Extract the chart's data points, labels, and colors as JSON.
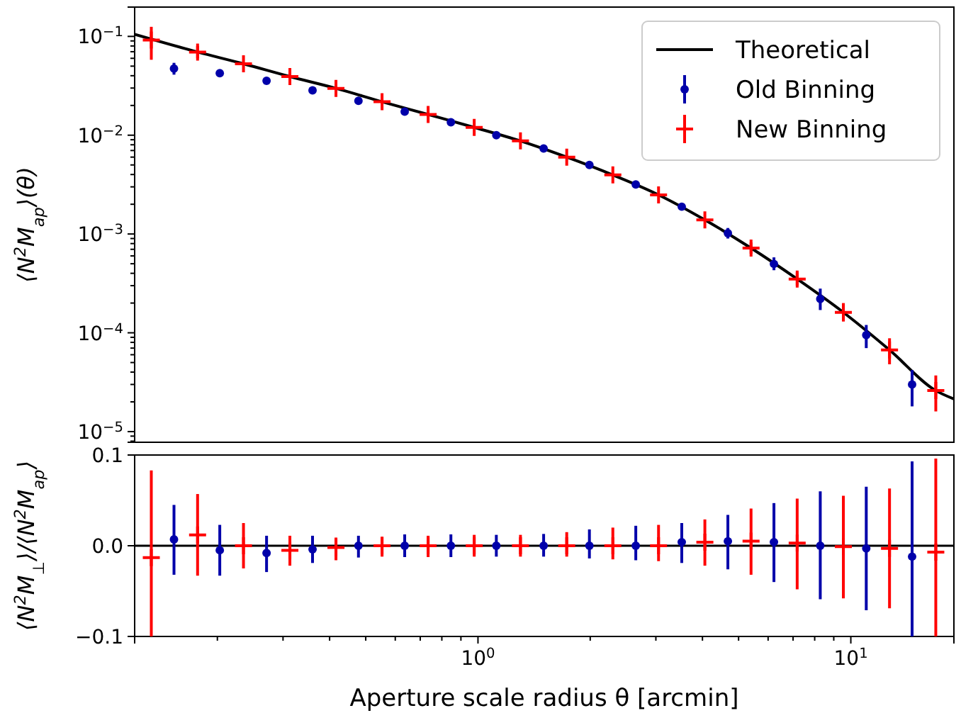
{
  "chart_data": [
    {
      "type": "line",
      "ylabel": "⟨N$^{2}$M$_{ap}$⟩(θ)",
      "log": "xy",
      "xlim": [
        0.12,
        18.9
      ],
      "ylim": [
        7.8e-06,
        0.198
      ],
      "tick_labels": "y",
      "legend": "top right",
      "grid": false,
      "yticks": [
        {
          "value": 0.1,
          "label": "10$^{−1}$"
        },
        {
          "value": 0.01,
          "label": "10$^{−2}$"
        },
        {
          "value": 0.001,
          "label": "10$^{−3}$"
        },
        {
          "value": 0.0001,
          "label": "10$^{−4}$"
        },
        {
          "value": 1e-05,
          "label": "10$^{−5}$"
        }
      ],
      "series": [
        {
          "name": "Theoretical",
          "color": "#000000",
          "line_style": "solid",
          "x": [
            0.12,
            0.177,
            0.235,
            0.313,
            0.416,
            0.553,
            0.735,
            0.977,
            1.3,
            1.73,
            2.3,
            3.05,
            4.06,
            5.4,
            7.18,
            9.55,
            12.7,
            16.9,
            18.9
          ],
          "values": [
            0.105,
            0.0695,
            0.0528,
            0.0392,
            0.0298,
            0.0218,
            0.0162,
            0.012,
            0.00875,
            0.006,
            0.00396,
            0.00249,
            0.00139,
            0.00072,
            0.00035,
            0.000161,
            6.7e-05,
            2.6e-05,
            2.14e-05
          ]
        },
        {
          "name": "Old Binning",
          "type": "scatter",
          "color": "#0000aa",
          "marker": "circle",
          "x": [
            0.153,
            0.203,
            0.271,
            0.36,
            0.478,
            0.636,
            0.846,
            1.12,
            1.5,
            1.99,
            2.65,
            3.52,
            4.68,
            6.22,
            8.28,
            11,
            14.6
          ],
          "values": [
            0.0473,
            0.0424,
            0.0355,
            0.0284,
            0.0223,
            0.0173,
            0.0135,
            0.01,
            0.00733,
            0.00499,
            0.00317,
            0.00189,
            0.00102,
            0.000498,
            0.00022,
            9.5e-05,
            3e-05
          ],
          "errors": [
            [
              0.041,
              0.054
            ],
            null,
            null,
            null,
            null,
            null,
            null,
            null,
            null,
            null,
            null,
            null,
            [
              0.0009,
              0.00115
            ],
            [
              0.00043,
              0.00058
            ],
            [
              0.00017,
              0.00028
            ],
            [
              7e-05,
              0.00012
            ],
            [
              1.8e-05,
              4.2e-05
            ]
          ]
        },
        {
          "name": "New Binning",
          "type": "scatter",
          "color": "#ff0000",
          "marker": "cross",
          "x": [
            0.133,
            0.177,
            0.235,
            0.313,
            0.416,
            0.553,
            0.735,
            0.977,
            1.3,
            1.73,
            2.3,
            3.05,
            4.06,
            5.4,
            7.18,
            9.55,
            12.7,
            16.9
          ],
          "values": [
            0.092,
            0.0695,
            0.0528,
            0.0392,
            0.0298,
            0.0218,
            0.0162,
            0.012,
            0.00875,
            0.006,
            0.00396,
            0.00249,
            0.00139,
            0.00072,
            0.00035,
            0.000161,
            6.7e-05,
            2.6e-05
          ],
          "errors": [
            [
              0.058,
              0.125
            ],
            [
              0.06,
              0.08
            ],
            null,
            null,
            null,
            null,
            null,
            null,
            null,
            null,
            null,
            null,
            null,
            [
              0.00063,
              0.00082
            ],
            [
              0.0003,
              0.00041
            ],
            [
              0.00013,
              0.0002
            ],
            [
              4.8e-05,
              8.8e-05
            ],
            [
              1.6e-05,
              3.7e-05
            ]
          ]
        }
      ]
    },
    {
      "type": "scatter",
      "xlabel": "Aperture scale radius θ [arcmin]",
      "ylabel": "⟨N$^{2}$M$_{⊥}$⟩/⟨N$^{2}$M$_{ap}$⟩",
      "log": "x",
      "xlim": [
        0.12,
        18.9
      ],
      "ylim": [
        -0.1,
        0.1
      ],
      "grid": false,
      "yticks": [
        {
          "value": 0.1,
          "label": "0.1"
        },
        {
          "value": 0,
          "label": "0.0"
        },
        {
          "value": -0.1,
          "label": "−0.1"
        }
      ],
      "xticks": [
        {
          "value": 1,
          "label": "10$^{0}$"
        },
        {
          "value": 10,
          "label": "10$^{1}$"
        }
      ],
      "ref_lines": [
        {
          "axis": "y",
          "value": 0,
          "color": "#000000"
        }
      ],
      "series": [
        {
          "color": "#0000aa",
          "marker": "circle",
          "x": [
            0.153,
            0.203,
            0.271,
            0.36,
            0.478,
            0.636,
            0.846,
            1.12,
            1.5,
            1.99,
            2.65,
            3.52,
            4.68,
            6.22,
            8.28,
            11,
            14.6
          ],
          "values": [
            0.007,
            -0.005,
            -0.008,
            -0.004,
            0,
            0,
            0,
            0,
            0,
            0,
            0,
            0.004,
            0.005,
            0.004,
            0,
            -0.003,
            -0.012
          ],
          "errors": [
            [
              -0.032,
              0.045
            ],
            [
              -0.033,
              0.023
            ],
            [
              -0.029,
              0.011
            ],
            [
              -0.019,
              0.011
            ],
            [
              -0.013,
              0.011
            ],
            [
              -0.0125,
              0.0125
            ],
            [
              -0.0125,
              0.0125
            ],
            [
              -0.012,
              0.012
            ],
            [
              -0.012,
              0.013
            ],
            [
              -0.014,
              0.018
            ],
            [
              -0.016,
              0.022
            ],
            [
              -0.019,
              0.025
            ],
            [
              -0.026,
              0.034
            ],
            [
              -0.04,
              0.047
            ],
            [
              -0.059,
              0.06
            ],
            [
              -0.071,
              0.065
            ],
            [
              -0.1,
              0.093
            ]
          ]
        },
        {
          "color": "#ff0000",
          "marker": "cross",
          "x": [
            0.133,
            0.177,
            0.235,
            0.313,
            0.416,
            0.553,
            0.735,
            0.977,
            1.3,
            1.73,
            2.3,
            3.05,
            4.06,
            5.4,
            7.18,
            9.55,
            12.7,
            16.9
          ],
          "values": [
            -0.013,
            0.012,
            0,
            -0.005,
            -0.002,
            0,
            0,
            0,
            0,
            0,
            0,
            0,
            0.004,
            0.005,
            0.003,
            -0.001,
            -0.003,
            -0.007
          ],
          "errors": [
            [
              -0.1,
              0.083
            ],
            [
              -0.033,
              0.057
            ],
            [
              -0.025,
              0.025
            ],
            [
              -0.022,
              0.011
            ],
            [
              -0.016,
              0.009
            ],
            [
              -0.012,
              0.01
            ],
            [
              -0.0125,
              0.011
            ],
            [
              -0.012,
              0.012
            ],
            [
              -0.012,
              0.012
            ],
            [
              -0.012,
              0.015
            ],
            [
              -0.015,
              0.02
            ],
            [
              -0.017,
              0.023
            ],
            [
              -0.022,
              0.029
            ],
            [
              -0.032,
              0.041
            ],
            [
              -0.048,
              0.052
            ],
            [
              -0.058,
              0.055
            ],
            [
              -0.069,
              0.063
            ],
            [
              -0.1,
              0.096
            ]
          ]
        }
      ]
    }
  ]
}
